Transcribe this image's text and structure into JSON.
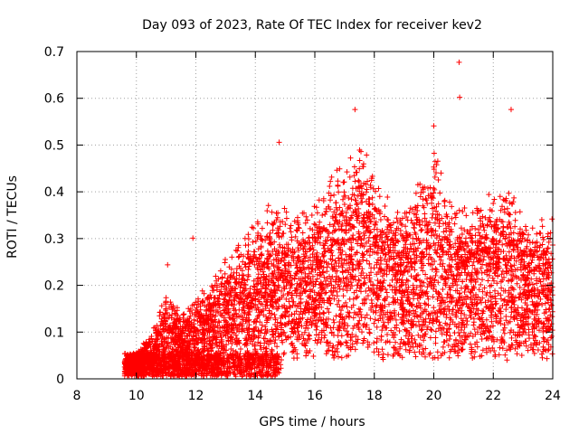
{
  "chart_data": {
    "type": "scatter",
    "title": "Day 093 of 2023, Rate Of TEC Index for receiver kev2",
    "xlabel": "GPS time / hours",
    "ylabel": "ROTI / TECUs",
    "xlim": [
      8,
      24
    ],
    "ylim": [
      0,
      0.7
    ],
    "xticks": [
      8,
      10,
      12,
      14,
      16,
      18,
      20,
      22,
      24
    ],
    "yticks": [
      0,
      0.1,
      0.2,
      0.3,
      0.4,
      0.5,
      0.6,
      0.7
    ],
    "xtick_labels": [
      "8",
      "10",
      "12",
      "14",
      "16",
      "18",
      "20",
      "22",
      "24"
    ],
    "ytick_labels": [
      "0",
      "0.1",
      "0.2",
      "0.3",
      "0.4",
      "0.5",
      "0.6",
      "0.7"
    ],
    "grid": true,
    "legend": "none",
    "marker": "+",
    "color": "#ff0000",
    "data_range": {
      "x_start": 9.6,
      "x_end": 24
    },
    "notable_points": [
      {
        "x": 20.85,
        "y": 0.677
      },
      {
        "x": 20.87,
        "y": 0.602
      },
      {
        "x": 17.35,
        "y": 0.576
      },
      {
        "x": 22.6,
        "y": 0.576
      },
      {
        "x": 20.0,
        "y": 0.541
      },
      {
        "x": 14.8,
        "y": 0.506
      },
      {
        "x": 11.9,
        "y": 0.301
      },
      {
        "x": 11.05,
        "y": 0.244
      }
    ],
    "envelope": [
      {
        "x": 9.6,
        "y": 0.04
      },
      {
        "x": 10.0,
        "y": 0.05
      },
      {
        "x": 10.5,
        "y": 0.08
      },
      {
        "x": 11.0,
        "y": 0.16
      },
      {
        "x": 11.5,
        "y": 0.12
      },
      {
        "x": 12.0,
        "y": 0.15
      },
      {
        "x": 12.5,
        "y": 0.18
      },
      {
        "x": 13.0,
        "y": 0.22
      },
      {
        "x": 13.5,
        "y": 0.26
      },
      {
        "x": 14.0,
        "y": 0.29
      },
      {
        "x": 14.5,
        "y": 0.32
      },
      {
        "x": 15.0,
        "y": 0.33
      },
      {
        "x": 15.5,
        "y": 0.32
      },
      {
        "x": 16.0,
        "y": 0.33
      },
      {
        "x": 16.5,
        "y": 0.38
      },
      {
        "x": 17.0,
        "y": 0.4
      },
      {
        "x": 17.5,
        "y": 0.44
      },
      {
        "x": 18.0,
        "y": 0.4
      },
      {
        "x": 18.5,
        "y": 0.34
      },
      {
        "x": 19.0,
        "y": 0.32
      },
      {
        "x": 19.5,
        "y": 0.38
      },
      {
        "x": 20.0,
        "y": 0.42
      },
      {
        "x": 20.5,
        "y": 0.36
      },
      {
        "x": 21.0,
        "y": 0.32
      },
      {
        "x": 21.5,
        "y": 0.33
      },
      {
        "x": 22.0,
        "y": 0.34
      },
      {
        "x": 22.5,
        "y": 0.38
      },
      {
        "x": 23.0,
        "y": 0.3
      },
      {
        "x": 23.5,
        "y": 0.3
      },
      {
        "x": 24.0,
        "y": 0.3
      }
    ]
  }
}
